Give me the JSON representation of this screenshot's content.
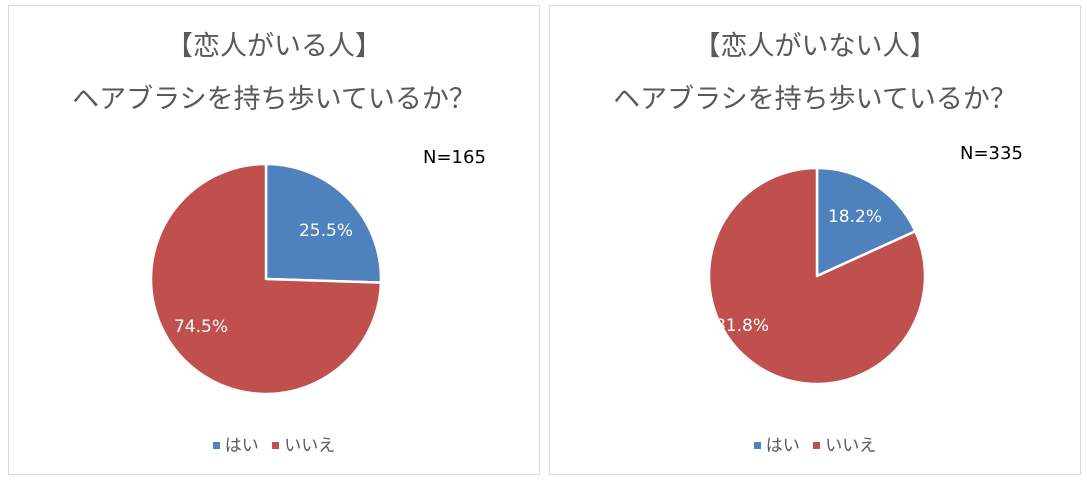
{
  "chart_data": [
    {
      "type": "pie",
      "title": [
        "【恋人がいる人】",
        "ヘアブラシを持ち歩いているか？"
      ],
      "n_label": "N=165",
      "categories": [
        "はい",
        "いいえ"
      ],
      "values": [
        25.5,
        74.5
      ],
      "data_labels": [
        "25.5%",
        "74.5%"
      ],
      "colors": [
        "#4f81bd",
        "#c0504d"
      ],
      "legend_position": "bottom"
    },
    {
      "type": "pie",
      "title": [
        "【恋人がいない人】",
        "ヘアブラシを持ち歩いているか？"
      ],
      "n_label": "N=335",
      "categories": [
        "はい",
        "いいえ"
      ],
      "values": [
        18.2,
        81.8
      ],
      "data_labels": [
        "18.2%",
        "81.8%"
      ],
      "colors": [
        "#4f81bd",
        "#c0504d"
      ],
      "legend_position": "bottom"
    }
  ]
}
